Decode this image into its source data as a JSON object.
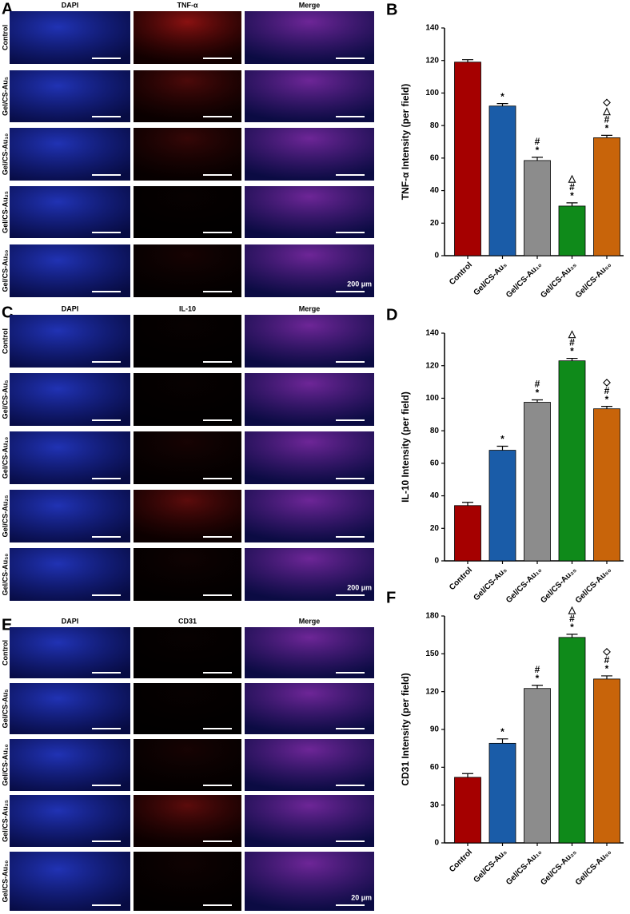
{
  "image_panels": [
    {
      "letter": "A",
      "columns": [
        "DAPI",
        "TNF-α",
        "Merge"
      ],
      "rows": [
        "Control",
        "Gel/CS-Au₅",
        "Gel/CS-Au₁₀",
        "Gel/CS-Au₂₅",
        "Gel/CS-Au₅₀"
      ],
      "scale_bar": "200 µm"
    },
    {
      "letter": "C",
      "columns": [
        "DAPI",
        "IL-10",
        "Merge"
      ],
      "rows": [
        "Control",
        "Gel/CS-Au₅",
        "Gel/CS-Au₁₀",
        "Gel/CS-Au₂₅",
        "Gel/CS-Au₅₀"
      ],
      "scale_bar": "200 µm"
    },
    {
      "letter": "E",
      "columns": [
        "DAPI",
        "CD31",
        "Merge"
      ],
      "rows": [
        "Control",
        "Gel/CS-Au₅",
        "Gel/CS-Au₁₀",
        "Gel/CS-Au₂₅",
        "Gel/CS-Au₅₀"
      ],
      "scale_bar": "20 µm"
    }
  ],
  "chart_data": [
    {
      "type": "bar",
      "panel": "B",
      "y_label": "TNF-α Intensity (per field)",
      "categories": [
        "Control",
        "Gel/CS-Au₅",
        "Gel/CS-Au₁₀",
        "Gel/CS-Au₂₅",
        "Gel/CS-Au₅₀"
      ],
      "values": [
        119,
        92,
        58.5,
        30.5,
        72.5
      ],
      "errors": [
        1.5,
        1.5,
        2,
        2,
        1.5
      ],
      "colors": [
        "#a50000",
        "#1a5ca8",
        "#8c8c8c",
        "#0f8a1a",
        "#c8640a"
      ],
      "annotations": [
        [],
        [
          "*"
        ],
        [
          "*",
          "#"
        ],
        [
          "*",
          "#",
          "△"
        ],
        [
          "*",
          "#",
          "△",
          "◇"
        ]
      ],
      "ylim": [
        0,
        140
      ],
      "yticks": [
        0,
        20,
        40,
        60,
        80,
        100,
        120,
        140
      ]
    },
    {
      "type": "bar",
      "panel": "D",
      "y_label": "IL-10 Intensity (per field)",
      "categories": [
        "Control",
        "Gel/CS-Au₅",
        "Gel/CS-Au₁₀",
        "Gel/CS-Au₂₅",
        "Gel/CS-Au₅₀"
      ],
      "values": [
        34,
        68,
        97.5,
        123,
        93.5
      ],
      "errors": [
        2,
        2.5,
        1.5,
        1.5,
        1.5
      ],
      "colors": [
        "#a50000",
        "#1a5ca8",
        "#8c8c8c",
        "#0f8a1a",
        "#c8640a"
      ],
      "annotations": [
        [],
        [
          "*"
        ],
        [
          "*",
          "#"
        ],
        [
          "*",
          "#",
          "△"
        ],
        [
          "*",
          "#",
          "◇"
        ]
      ],
      "ylim": [
        0,
        140
      ],
      "yticks": [
        0,
        20,
        40,
        60,
        80,
        100,
        120,
        140
      ]
    },
    {
      "type": "bar",
      "panel": "F",
      "y_label": "CD31 Intensity (per field)",
      "categories": [
        "Control",
        "Gel/CS-Au₅",
        "Gel/CS-Au₁₀",
        "Gel/CS-Au₂₅",
        "Gel/CS-Au₅₀"
      ],
      "values": [
        52,
        79,
        122.5,
        163,
        130
      ],
      "errors": [
        3,
        3.5,
        2.5,
        2.5,
        2.5
      ],
      "colors": [
        "#a50000",
        "#1a5ca8",
        "#8c8c8c",
        "#0f8a1a",
        "#c8640a"
      ],
      "annotations": [
        [],
        [
          "*"
        ],
        [
          "*",
          "#"
        ],
        [
          "*",
          "#",
          "△"
        ],
        [
          "*",
          "#",
          "◇"
        ]
      ],
      "ylim": [
        0,
        180
      ],
      "yticks": [
        0,
        30,
        60,
        90,
        120,
        150,
        180
      ]
    }
  ]
}
